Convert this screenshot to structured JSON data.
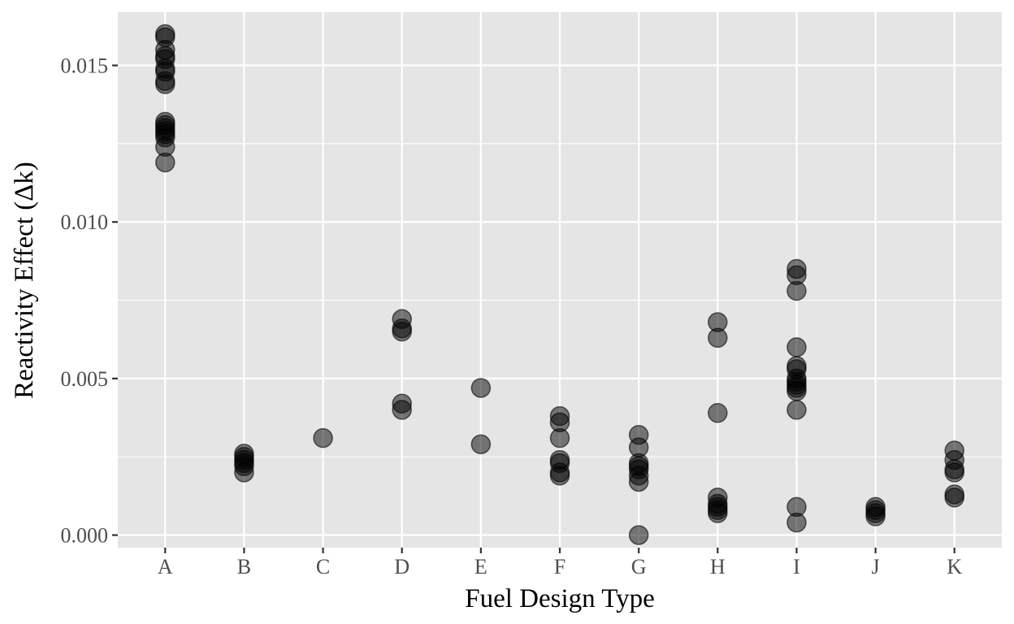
{
  "chart_data": {
    "type": "scatter",
    "title": "",
    "xlabel": "Fuel Design Type",
    "ylabel": "Reactivity Effect (Δk)",
    "categories": [
      "A",
      "B",
      "C",
      "D",
      "E",
      "F",
      "G",
      "H",
      "I",
      "J",
      "K"
    ],
    "ylim": [
      -0.0004,
      0.0167
    ],
    "yticks": [
      0.0,
      0.005,
      0.01,
      0.015
    ],
    "ytick_labels": [
      "0.000",
      "0.005",
      "0.010",
      "0.015"
    ],
    "grid": true,
    "legend": "none",
    "colors": {
      "panel": "#e5e5e5",
      "grid": "#ffffff",
      "point_fill": "#000000",
      "point_opacity": 0.5,
      "tick_mark": "#333333"
    },
    "points": [
      {
        "x": "A",
        "y": 0.016
      },
      {
        "x": "A",
        "y": 0.0159
      },
      {
        "x": "A",
        "y": 0.0155
      },
      {
        "x": "A",
        "y": 0.0153
      },
      {
        "x": "A",
        "y": 0.0152
      },
      {
        "x": "A",
        "y": 0.0149
      },
      {
        "x": "A",
        "y": 0.0148
      },
      {
        "x": "A",
        "y": 0.0145
      },
      {
        "x": "A",
        "y": 0.0144
      },
      {
        "x": "A",
        "y": 0.0132
      },
      {
        "x": "A",
        "y": 0.0131
      },
      {
        "x": "A",
        "y": 0.013
      },
      {
        "x": "A",
        "y": 0.0129
      },
      {
        "x": "A",
        "y": 0.0128
      },
      {
        "x": "A",
        "y": 0.0127
      },
      {
        "x": "A",
        "y": 0.0124
      },
      {
        "x": "A",
        "y": 0.0119
      },
      {
        "x": "B",
        "y": 0.0026
      },
      {
        "x": "B",
        "y": 0.0025
      },
      {
        "x": "B",
        "y": 0.0024
      },
      {
        "x": "B",
        "y": 0.0023
      },
      {
        "x": "B",
        "y": 0.0022
      },
      {
        "x": "B",
        "y": 0.002
      },
      {
        "x": "C",
        "y": 0.0031
      },
      {
        "x": "D",
        "y": 0.0069
      },
      {
        "x": "D",
        "y": 0.0066
      },
      {
        "x": "D",
        "y": 0.0065
      },
      {
        "x": "D",
        "y": 0.0042
      },
      {
        "x": "D",
        "y": 0.004
      },
      {
        "x": "E",
        "y": 0.0047
      },
      {
        "x": "E",
        "y": 0.0029
      },
      {
        "x": "F",
        "y": 0.0038
      },
      {
        "x": "F",
        "y": 0.0036
      },
      {
        "x": "F",
        "y": 0.0031
      },
      {
        "x": "F",
        "y": 0.0024
      },
      {
        "x": "F",
        "y": 0.0023
      },
      {
        "x": "F",
        "y": 0.002
      },
      {
        "x": "F",
        "y": 0.0019
      },
      {
        "x": "G",
        "y": 0.0032
      },
      {
        "x": "G",
        "y": 0.0028
      },
      {
        "x": "G",
        "y": 0.0023
      },
      {
        "x": "G",
        "y": 0.0022
      },
      {
        "x": "G",
        "y": 0.0021
      },
      {
        "x": "G",
        "y": 0.0019
      },
      {
        "x": "G",
        "y": 0.0017
      },
      {
        "x": "G",
        "y": 0.0
      },
      {
        "x": "H",
        "y": 0.0068
      },
      {
        "x": "H",
        "y": 0.0063
      },
      {
        "x": "H",
        "y": 0.0039
      },
      {
        "x": "H",
        "y": 0.0012
      },
      {
        "x": "H",
        "y": 0.001
      },
      {
        "x": "H",
        "y": 0.0009
      },
      {
        "x": "H",
        "y": 0.0008
      },
      {
        "x": "H",
        "y": 0.0007
      },
      {
        "x": "I",
        "y": 0.0085
      },
      {
        "x": "I",
        "y": 0.0083
      },
      {
        "x": "I",
        "y": 0.0078
      },
      {
        "x": "I",
        "y": 0.006
      },
      {
        "x": "I",
        "y": 0.0054
      },
      {
        "x": "I",
        "y": 0.0053
      },
      {
        "x": "I",
        "y": 0.005
      },
      {
        "x": "I",
        "y": 0.0049
      },
      {
        "x": "I",
        "y": 0.0048
      },
      {
        "x": "I",
        "y": 0.0047
      },
      {
        "x": "I",
        "y": 0.0046
      },
      {
        "x": "I",
        "y": 0.004
      },
      {
        "x": "I",
        "y": 0.0009
      },
      {
        "x": "I",
        "y": 0.0004
      },
      {
        "x": "J",
        "y": 0.0009
      },
      {
        "x": "J",
        "y": 0.0008
      },
      {
        "x": "J",
        "y": 0.0007
      },
      {
        "x": "J",
        "y": 0.0006
      },
      {
        "x": "K",
        "y": 0.0027
      },
      {
        "x": "K",
        "y": 0.0024
      },
      {
        "x": "K",
        "y": 0.0021
      },
      {
        "x": "K",
        "y": 0.002
      },
      {
        "x": "K",
        "y": 0.0013
      },
      {
        "x": "K",
        "y": 0.0012
      }
    ]
  }
}
